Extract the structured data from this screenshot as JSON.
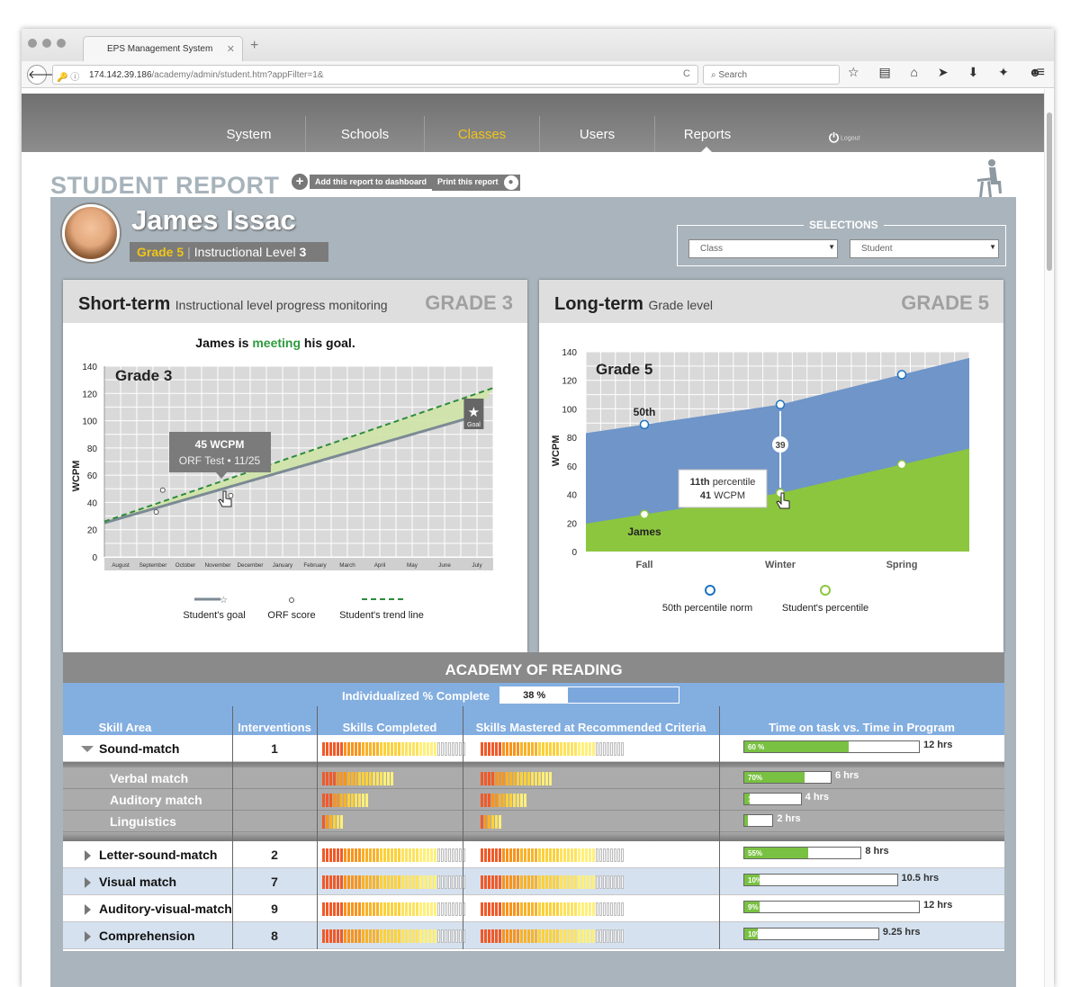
{
  "browser": {
    "tab_title": "EPS Management System",
    "tab_close": "✕",
    "new_tab": "+",
    "url_host": "174.142.39.186",
    "url_path": "/academy/admin/student.htm?appFilter=1&",
    "search_placeholder": "Search",
    "back": "🡐",
    "reload": "C",
    "url_icons": "🔑 ⓘ",
    "tools": "☆ ▤ ⌂ ➤ ⬇ ✦ ☻",
    "menu": "≡"
  },
  "nav": {
    "items": [
      {
        "label": "System"
      },
      {
        "label": "Schools"
      },
      {
        "label": "Classes",
        "active": true
      },
      {
        "label": "Users"
      },
      {
        "label": "Reports"
      }
    ],
    "logout": "Logout",
    "logout_icon": "⏻"
  },
  "report": {
    "title": "STUDENT REPORT",
    "add_dashboard": "Add this report to dashboard",
    "print": "Print this report",
    "add_icon": "+",
    "print_icon": "●"
  },
  "student": {
    "name": "James Issac",
    "grade_label": "Grade 5",
    "level_label": "Instructional Level",
    "level_value": "3"
  },
  "selections": {
    "title": "SELECTIONS",
    "class_placeholder": "Class",
    "student_placeholder": "Student",
    "arrow": "▼"
  },
  "short_term": {
    "title": "Short-term",
    "subtitle": "Instructional level progress monitoring",
    "grade": "GRADE 3",
    "status_prefix": "James is",
    "status_word": "meeting",
    "status_suffix": "his goal.",
    "inner_grade": "Grade 3",
    "goal_label": "Goal",
    "tooltip_value": "45 WCPM",
    "tooltip_detail": "ORF Test • 11/25",
    "legend": {
      "goal": "Student's goal",
      "orf": "ORF score",
      "trend": "Student's trend line"
    }
  },
  "long_term": {
    "title": "Long-term",
    "subtitle": "Grade level",
    "grade": "GRADE 5",
    "inner_grade": "Grade 5",
    "label_50": "50th",
    "label_student": "James",
    "gap": "39",
    "tooltip_pct": "11th",
    "tooltip_pct_word": "percentile",
    "tooltip_val": "41",
    "tooltip_unit": "WCPM",
    "legend": {
      "norm": "50th percentile norm",
      "student": "Student's percentile"
    }
  },
  "chart_data": [
    {
      "type": "line",
      "title": "",
      "inner_label": "Grade 3",
      "ylabel": "WCPM",
      "ylim": [
        0,
        140
      ],
      "yticks": [
        0,
        20,
        40,
        60,
        80,
        100,
        120,
        140
      ],
      "categories": [
        "August",
        "September",
        "October",
        "November",
        "December",
        "January",
        "February",
        "March",
        "April",
        "May",
        "June",
        "July"
      ],
      "series": [
        {
          "name": "Student's goal",
          "values": [
            {
              "x": 0,
              "y": 25
            },
            {
              "x": 11.4,
              "y": 103
            }
          ]
        },
        {
          "name": "Student's trend line",
          "values": [
            {
              "x": 0,
              "y": 26
            },
            {
              "x": 12,
              "y": 124
            }
          ]
        },
        {
          "name": "ORF score",
          "values": [
            {
              "x": 1.6,
              "y": 33
            },
            {
              "x": 1.8,
              "y": 49
            },
            {
              "x": 3.9,
              "y": 45
            }
          ]
        }
      ],
      "goal": {
        "x": 11.4,
        "y": 103
      }
    },
    {
      "type": "area",
      "title": "",
      "inner_label": "Grade 5",
      "ylabel": "WCPM",
      "ylim": [
        0,
        140
      ],
      "yticks": [
        0,
        20,
        40,
        60,
        80,
        100,
        120,
        140
      ],
      "categories": [
        "Fall",
        "Winter",
        "Spring"
      ],
      "series": [
        {
          "name": "50th percentile norm",
          "values": [
            89,
            103,
            124
          ]
        },
        {
          "name": "Student's percentile",
          "values": [
            26,
            41,
            61
          ]
        }
      ]
    }
  ],
  "academy": {
    "title": "ACADEMY OF READING",
    "complete_label": "Individualized % Complete",
    "complete_pct": 0.38,
    "complete_text": "38 %",
    "headers": {
      "skill": "Skill Area",
      "interventions": "Interventions",
      "completed": "Skills Completed",
      "mastered": "Skills Mastered at Recommended Criteria",
      "time": "Time on task vs. Time in Program"
    },
    "rows": [
      {
        "name": "Sound-match",
        "interventions": "1",
        "completed": 32,
        "completed_total": 40,
        "mastered": 32,
        "mastered_total": 40,
        "time_pct": "60 %",
        "time_frac": 0.6,
        "time_total": "12 hrs",
        "total_frac": 1.0,
        "expanded": true
      },
      {
        "name": "Verbal match",
        "sub": true,
        "completed": 20,
        "mastered": 20,
        "time_pct": "70%",
        "time_frac": 0.7,
        "time_total": "6 hrs",
        "total_frac": 0.5
      },
      {
        "name": "Auditory match",
        "sub": true,
        "completed": 13,
        "mastered": 13,
        "time_pct": "10%",
        "time_frac": 0.1,
        "time_total": "4 hrs",
        "total_frac": 0.33
      },
      {
        "name": "Linguistics",
        "sub": true,
        "completed": 6,
        "mastered": 6,
        "time_pct": "5%",
        "time_frac": 0.05,
        "time_total": "2 hrs",
        "total_frac": 0.17
      },
      {
        "name": "Letter-sound-match",
        "interventions": "2",
        "completed": 32,
        "completed_total": 40,
        "mastered": 32,
        "mastered_total": 40,
        "time_pct": "55%",
        "time_frac": 0.55,
        "time_total": "8 hrs",
        "total_frac": 0.67
      },
      {
        "name": "Visual match",
        "interventions": "7",
        "completed": 32,
        "completed_total": 40,
        "mastered": 32,
        "mastered_total": 40,
        "time_pct": "10%",
        "time_frac": 0.1,
        "time_total": "10.5 hrs",
        "total_frac": 0.875
      },
      {
        "name": "Auditory-visual-match",
        "interventions": "9",
        "completed": 32,
        "completed_total": 40,
        "mastered": 32,
        "mastered_total": 40,
        "time_pct": "9%",
        "time_frac": 0.09,
        "time_total": "12 hrs",
        "total_frac": 1.0
      },
      {
        "name": "Comprehension",
        "interventions": "8",
        "completed": 32,
        "completed_total": 40,
        "mastered": 32,
        "mastered_total": 40,
        "time_pct": "10%",
        "time_frac": 0.1,
        "time_total": "9.25 hrs",
        "total_frac": 0.77
      }
    ]
  },
  "colors": {
    "accent": "#f0c419",
    "green": "#79c142",
    "norm_blue": "#6f95c9",
    "student_green": "#8cc63f",
    "trend_green": "#2e8b3c",
    "meeting": "#2e9b3e"
  }
}
